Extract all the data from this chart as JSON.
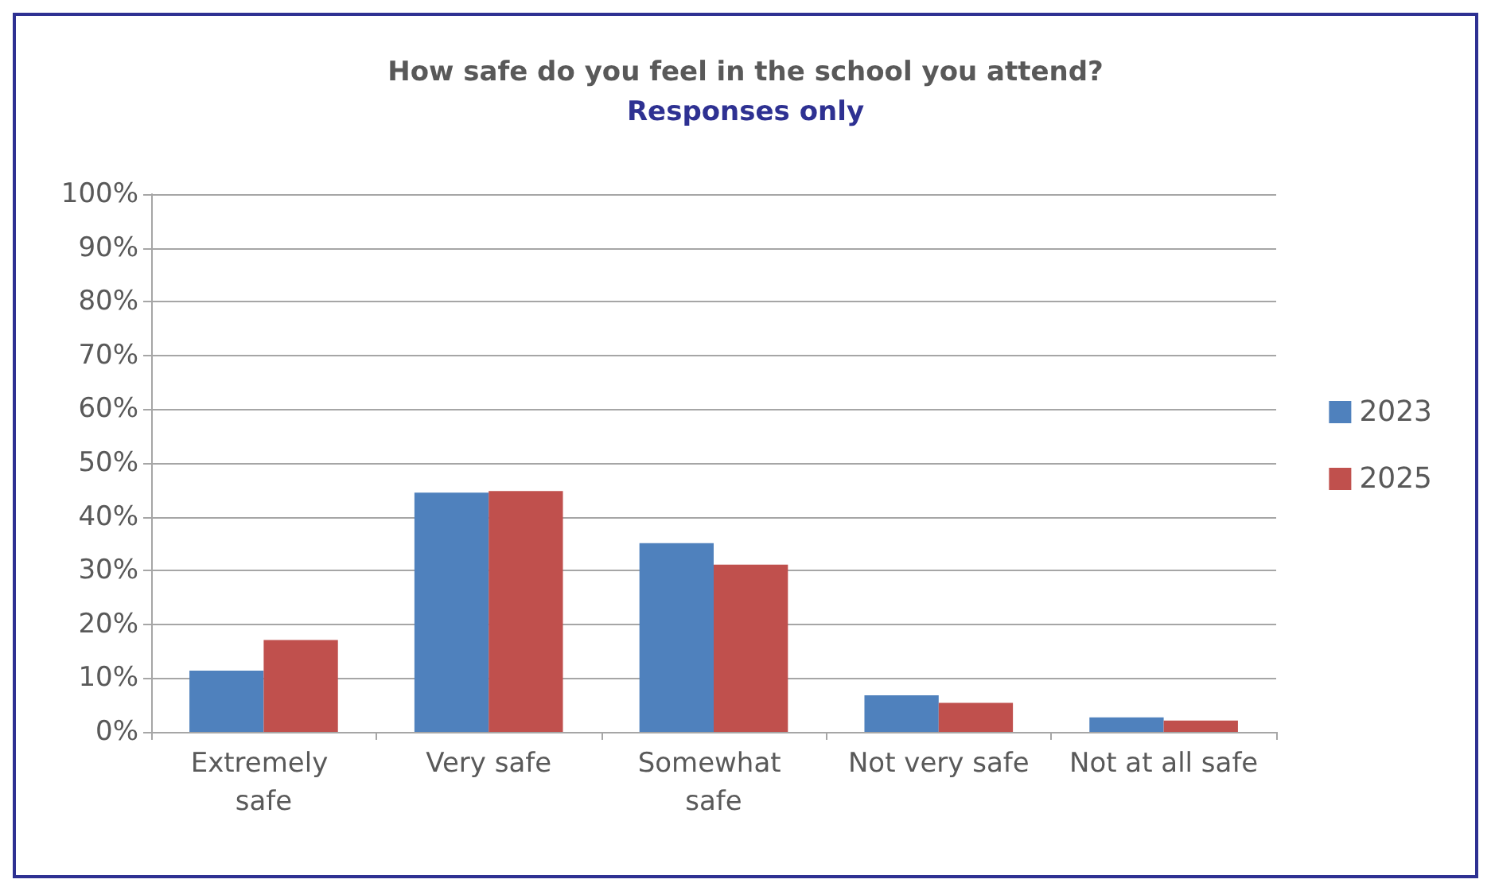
{
  "chart_data": {
    "type": "bar",
    "title": "How safe do you feel in the school you attend?",
    "subtitle": "Responses only",
    "categories": [
      "Extremely safe",
      "Very safe",
      "Somewhat safe",
      "Not very safe",
      "Not at all safe"
    ],
    "series": [
      {
        "name": "2023",
        "color": "#4f81bd",
        "values": [
          11.4,
          44.5,
          35.1,
          6.8,
          2.7
        ]
      },
      {
        "name": "2025",
        "color": "#c0504d",
        "values": [
          17.1,
          44.8,
          31.1,
          5.4,
          2.1
        ]
      }
    ],
    "ylim": [
      0,
      100
    ],
    "yticks": [
      {
        "value": 0,
        "label": "0%"
      },
      {
        "value": 10,
        "label": "10%"
      },
      {
        "value": 20,
        "label": "20%"
      },
      {
        "value": 30,
        "label": "30%"
      },
      {
        "value": 40,
        "label": "40%"
      },
      {
        "value": 50,
        "label": "50%"
      },
      {
        "value": 60,
        "label": "60%"
      },
      {
        "value": 70,
        "label": "70%"
      },
      {
        "value": 80,
        "label": "80%"
      },
      {
        "value": 90,
        "label": "90%"
      },
      {
        "value": 100,
        "label": "100%"
      }
    ],
    "grid": "y",
    "legend": "right"
  }
}
